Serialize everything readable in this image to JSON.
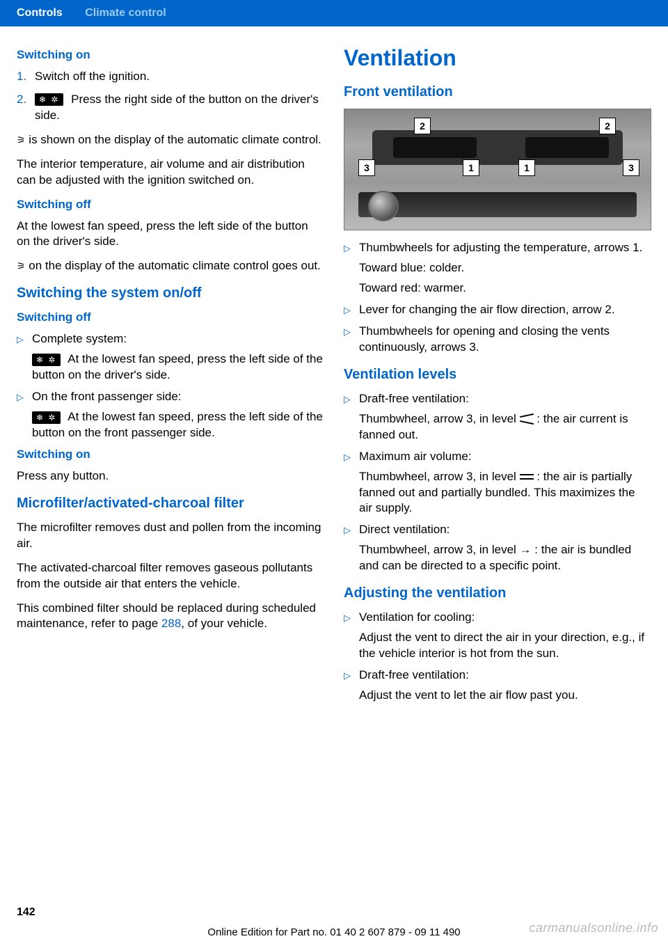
{
  "header": {
    "tab1": "Controls",
    "tab2": "Climate control"
  },
  "left": {
    "switching_on_h": "Switching on",
    "step1_num": "1.",
    "step1": "Switch off the ignition.",
    "step2_num": "2.",
    "step2_icon": "❄  ✲",
    "step2": " Press the right side of the button on the driver's side.",
    "so_p1a": " is shown on the display of the automatic cli­mate control.",
    "so_p2": "The interior temperature, air volume and air dis­tribution can be adjusted with the ignition switched on.",
    "switching_off_h": "Switching off",
    "soff_p1": "At the lowest fan speed, press the left side of the button on the driver's side.",
    "soff_p2": " on the display of the automatic climate control goes out.",
    "sys_h": "Switching the system on/off",
    "sys_off_h": "Switching off",
    "sys_b1": "Complete system:",
    "sys_b1_sub": " At the lowest fan speed, press the left side of the button on the driver's side.",
    "sys_b2": "On the front passenger side:",
    "sys_b2_sub": " At the lowest fan speed, press the left side of the button on the front passenger side.",
    "sys_on_h": "Switching on",
    "sys_on_p": "Press any button.",
    "micro_h": "Microfilter/activated-charcoal filter",
    "micro_p1": "The microfilter removes dust and pollen from the incoming air.",
    "micro_p2": "The activated-charcoal filter removes gaseous pollutants from the outside air that enters the vehicle.",
    "micro_p3a": "This combined filter should be replaced during scheduled maintenance, refer to page ",
    "micro_link": "288",
    "micro_p3b": ", of your vehicle."
  },
  "right": {
    "vent_h": "Ventilation",
    "front_h": "Front ventilation",
    "callouts": {
      "c1": "1",
      "c2": "2",
      "c3": "3"
    },
    "fv_b1a": "Thumbwheels for adjusting the tempera­ture, arrows 1.",
    "fv_b1b": "Toward blue: colder.",
    "fv_b1c": "Toward red: warmer.",
    "fv_b2": "Lever for changing the air flow direction, ar­row 2.",
    "fv_b3": "Thumbwheels for opening and closing the vents continuously, arrows 3.",
    "levels_h": "Ventilation levels",
    "lv_b1": "Draft-free ventilation:",
    "lv_b1_sub_a": "Thumbwheel, arrow 3, in level ",
    "lv_b1_sub_b": " : the air current is fanned out.",
    "lv_b2": "Maximum air volume:",
    "lv_b2_sub_a": "Thumbwheel, arrow 3, in level ",
    "lv_b2_sub_b": " : the air is partially fanned out and partially bundled. This maximizes the air supply.",
    "lv_b3": "Direct ventilation:",
    "lv_b3_sub_a": "Thumbwheel, arrow 3, in level ",
    "lv_b3_sub_b": " : the air is bundled and can be directed to a specific point.",
    "adj_h": "Adjusting the ventilation",
    "adj_b1": "Ventilation for cooling:",
    "adj_b1_sub": "Adjust the vent to direct the air in your di­rection, e.g., if the vehicle interior is hot from the sun.",
    "adj_b2": "Draft-free ventilation:",
    "adj_b2_sub": "Adjust the vent to let the air flow past you."
  },
  "page_number": "142",
  "footer": "Online Edition for Part no. 01 40 2 607 879 - 09 11 490",
  "watermark": "carmanualsonline.info",
  "bullet_glyph": "▷",
  "vent_glyph": "⚞"
}
